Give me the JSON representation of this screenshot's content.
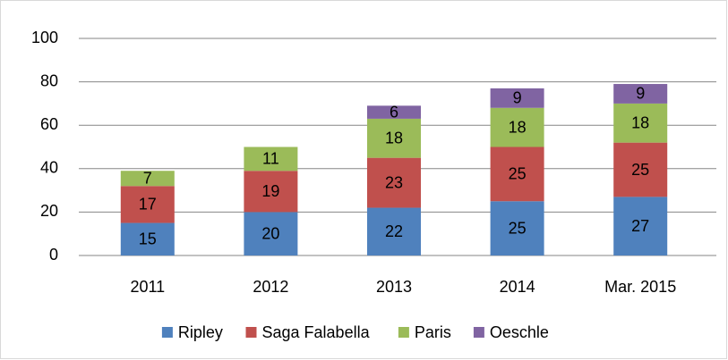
{
  "chart_data": {
    "type": "stacked_bar",
    "categories": [
      "2011",
      "2012",
      "2013",
      "2014",
      "Mar. 2015"
    ],
    "series": [
      {
        "name": "Ripley",
        "color": "#4f81bd",
        "values": [
          15,
          20,
          22,
          25,
          27
        ]
      },
      {
        "name": "Saga Falabella",
        "color": "#c0504d",
        "values": [
          17,
          19,
          23,
          25,
          25
        ]
      },
      {
        "name": "Paris",
        "color": "#9bbb59",
        "values": [
          7,
          11,
          18,
          18,
          18
        ]
      },
      {
        "name": "Oeschle",
        "color": "#8064a2",
        "values": [
          null,
          null,
          6,
          9,
          9
        ]
      }
    ],
    "ylim": [
      0,
      100
    ],
    "yticks": [
      0,
      20,
      40,
      60,
      80,
      100
    ],
    "grid": true,
    "legend": "bottom"
  }
}
